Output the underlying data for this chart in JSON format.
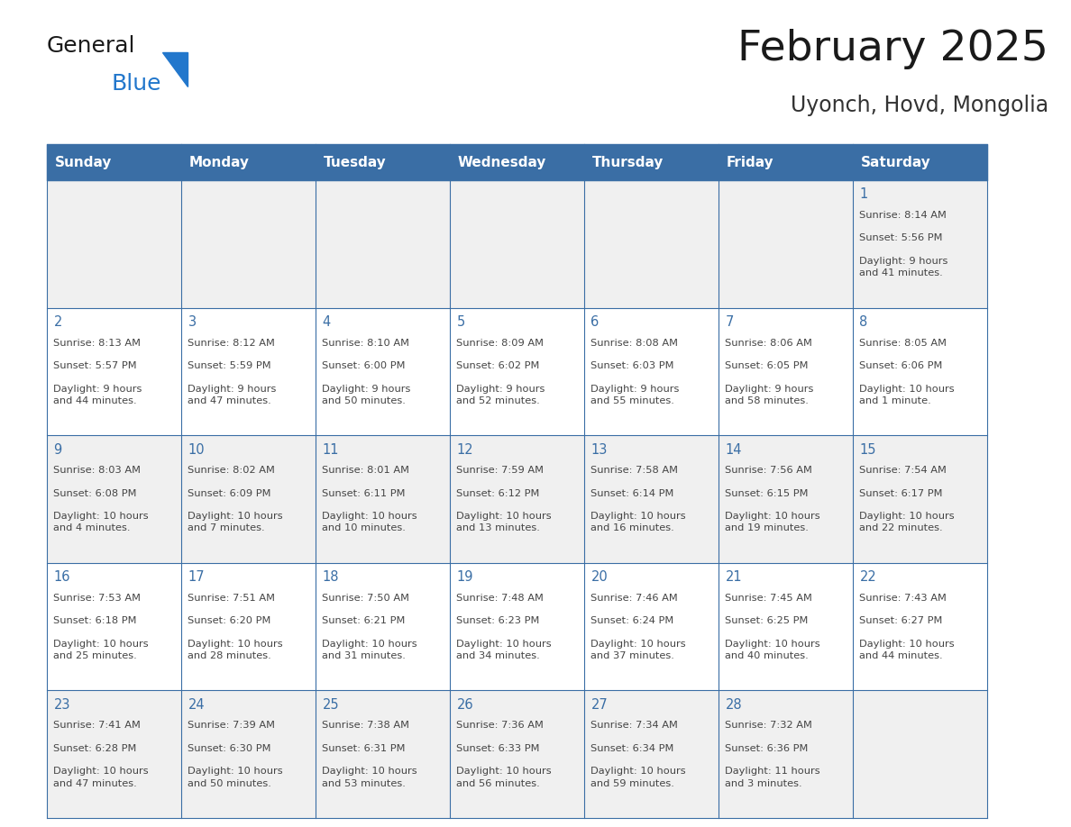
{
  "title": "February 2025",
  "subtitle": "Uyonch, Hovd, Mongolia",
  "days_of_week": [
    "Sunday",
    "Monday",
    "Tuesday",
    "Wednesday",
    "Thursday",
    "Friday",
    "Saturday"
  ],
  "header_bg": "#3a6ea5",
  "header_text": "#ffffff",
  "cell_bg_odd": "#f0f0f0",
  "cell_bg_even": "#ffffff",
  "grid_color": "#3a6ea5",
  "title_color": "#1a1a1a",
  "subtitle_color": "#333333",
  "day_num_color": "#3a6ea5",
  "cell_text_color": "#444444",
  "logo_general_color": "#1a1a1a",
  "logo_blue_color": "#2277cc",
  "fig_width": 11.88,
  "fig_height": 9.18,
  "calendar_data": [
    [
      null,
      null,
      null,
      null,
      null,
      null,
      {
        "day": 1,
        "sunrise": "8:14 AM",
        "sunset": "5:56 PM",
        "daylight": "9 hours\nand 41 minutes."
      }
    ],
    [
      {
        "day": 2,
        "sunrise": "8:13 AM",
        "sunset": "5:57 PM",
        "daylight": "9 hours\nand 44 minutes."
      },
      {
        "day": 3,
        "sunrise": "8:12 AM",
        "sunset": "5:59 PM",
        "daylight": "9 hours\nand 47 minutes."
      },
      {
        "day": 4,
        "sunrise": "8:10 AM",
        "sunset": "6:00 PM",
        "daylight": "9 hours\nand 50 minutes."
      },
      {
        "day": 5,
        "sunrise": "8:09 AM",
        "sunset": "6:02 PM",
        "daylight": "9 hours\nand 52 minutes."
      },
      {
        "day": 6,
        "sunrise": "8:08 AM",
        "sunset": "6:03 PM",
        "daylight": "9 hours\nand 55 minutes."
      },
      {
        "day": 7,
        "sunrise": "8:06 AM",
        "sunset": "6:05 PM",
        "daylight": "9 hours\nand 58 minutes."
      },
      {
        "day": 8,
        "sunrise": "8:05 AM",
        "sunset": "6:06 PM",
        "daylight": "10 hours\nand 1 minute."
      }
    ],
    [
      {
        "day": 9,
        "sunrise": "8:03 AM",
        "sunset": "6:08 PM",
        "daylight": "10 hours\nand 4 minutes."
      },
      {
        "day": 10,
        "sunrise": "8:02 AM",
        "sunset": "6:09 PM",
        "daylight": "10 hours\nand 7 minutes."
      },
      {
        "day": 11,
        "sunrise": "8:01 AM",
        "sunset": "6:11 PM",
        "daylight": "10 hours\nand 10 minutes."
      },
      {
        "day": 12,
        "sunrise": "7:59 AM",
        "sunset": "6:12 PM",
        "daylight": "10 hours\nand 13 minutes."
      },
      {
        "day": 13,
        "sunrise": "7:58 AM",
        "sunset": "6:14 PM",
        "daylight": "10 hours\nand 16 minutes."
      },
      {
        "day": 14,
        "sunrise": "7:56 AM",
        "sunset": "6:15 PM",
        "daylight": "10 hours\nand 19 minutes."
      },
      {
        "day": 15,
        "sunrise": "7:54 AM",
        "sunset": "6:17 PM",
        "daylight": "10 hours\nand 22 minutes."
      }
    ],
    [
      {
        "day": 16,
        "sunrise": "7:53 AM",
        "sunset": "6:18 PM",
        "daylight": "10 hours\nand 25 minutes."
      },
      {
        "day": 17,
        "sunrise": "7:51 AM",
        "sunset": "6:20 PM",
        "daylight": "10 hours\nand 28 minutes."
      },
      {
        "day": 18,
        "sunrise": "7:50 AM",
        "sunset": "6:21 PM",
        "daylight": "10 hours\nand 31 minutes."
      },
      {
        "day": 19,
        "sunrise": "7:48 AM",
        "sunset": "6:23 PM",
        "daylight": "10 hours\nand 34 minutes."
      },
      {
        "day": 20,
        "sunrise": "7:46 AM",
        "sunset": "6:24 PM",
        "daylight": "10 hours\nand 37 minutes."
      },
      {
        "day": 21,
        "sunrise": "7:45 AM",
        "sunset": "6:25 PM",
        "daylight": "10 hours\nand 40 minutes."
      },
      {
        "day": 22,
        "sunrise": "7:43 AM",
        "sunset": "6:27 PM",
        "daylight": "10 hours\nand 44 minutes."
      }
    ],
    [
      {
        "day": 23,
        "sunrise": "7:41 AM",
        "sunset": "6:28 PM",
        "daylight": "10 hours\nand 47 minutes."
      },
      {
        "day": 24,
        "sunrise": "7:39 AM",
        "sunset": "6:30 PM",
        "daylight": "10 hours\nand 50 minutes."
      },
      {
        "day": 25,
        "sunrise": "7:38 AM",
        "sunset": "6:31 PM",
        "daylight": "10 hours\nand 53 minutes."
      },
      {
        "day": 26,
        "sunrise": "7:36 AM",
        "sunset": "6:33 PM",
        "daylight": "10 hours\nand 56 minutes."
      },
      {
        "day": 27,
        "sunrise": "7:34 AM",
        "sunset": "6:34 PM",
        "daylight": "10 hours\nand 59 minutes."
      },
      {
        "day": 28,
        "sunrise": "7:32 AM",
        "sunset": "6:36 PM",
        "daylight": "11 hours\nand 3 minutes."
      },
      null
    ]
  ]
}
